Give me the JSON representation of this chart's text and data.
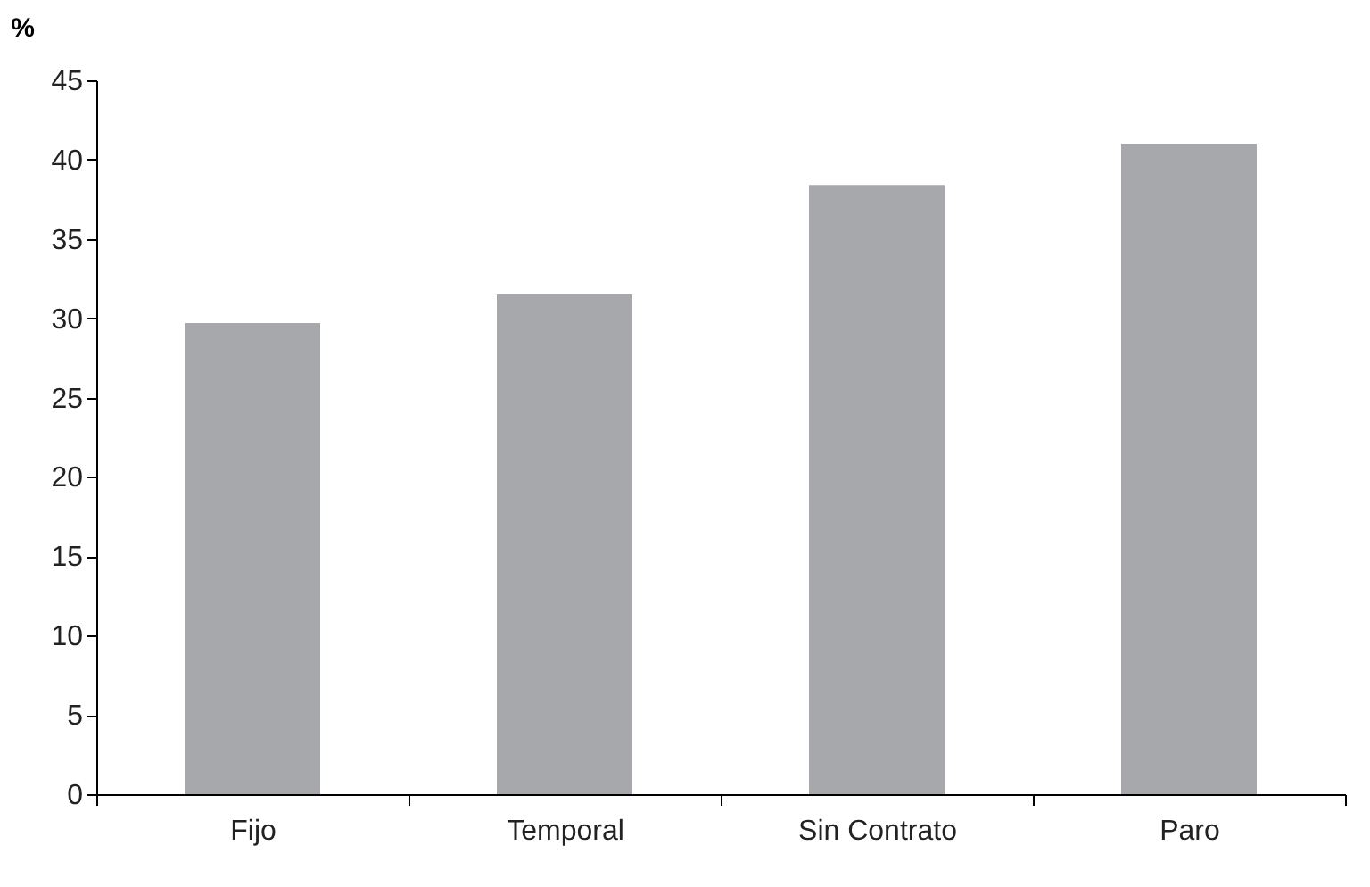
{
  "chart_data": {
    "type": "bar",
    "ylabel": "%",
    "categories": [
      "Fijo",
      "Temporal",
      "Sin Contrato",
      "Paro"
    ],
    "values": [
      29.7,
      31.5,
      38.4,
      41.0
    ],
    "color": "#a7a8ac",
    "ylim": [
      0,
      45
    ],
    "yticks": [
      0,
      5,
      10,
      15,
      20,
      25,
      30,
      35,
      40,
      45
    ],
    "grid": false,
    "legend": false
  }
}
